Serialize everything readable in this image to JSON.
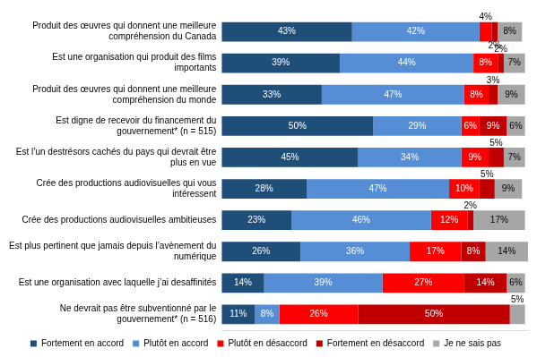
{
  "chart_data": {
    "type": "bar",
    "orientation": "horizontal",
    "stacked": true,
    "data_labels": true,
    "tick_labels": false,
    "grid": false,
    "legend": "bottom",
    "xlim": [
      0,
      101
    ],
    "categories": [
      "Produit des œuvres qui donnent une meilleure compréhension du Canada",
      "Est une organisation qui produit des films importants",
      "Produit des œuvres qui donnent une meilleure compréhension du monde",
      "Est digne de recevoir du financement du gouvernement* (n = 515)",
      "Est l’un destrésors cachés du pays qui devrait être plus en vue",
      "Crée des productions audiovisuelles qui vous intéressent",
      "Crée des productions audiovisuelles ambitieuses",
      "Est plus pertinent que jamais depuis l’avènement du numérique",
      "Est une organisation avec laquelle j’ai desaffinités",
      "Ne devrait pas être subventionné par le gouvernement* (n = 516)"
    ],
    "series": [
      {
        "name": "Fortement en accord",
        "color": "#1f4e79",
        "values": [
          43,
          39,
          33,
          50,
          45,
          28,
          23,
          26,
          14,
          11
        ],
        "value_labels": [
          "43%",
          "39%",
          "33%",
          "50%",
          "45%",
          "28%",
          "23%",
          "26%",
          "14%",
          "11%"
        ]
      },
      {
        "name": "Plutôt en accord",
        "color": "#558ed5",
        "values": [
          42,
          44,
          47,
          29,
          34,
          47,
          46,
          36,
          39,
          8
        ],
        "value_labels": [
          "42%",
          "44%",
          "47%",
          "29%",
          "34%",
          "47%",
          "46%",
          "36%",
          "39%",
          "8%"
        ]
      },
      {
        "name": "Plutôt en désaccord",
        "color": "#ff0000",
        "values": [
          4,
          8,
          8,
          6,
          9,
          10,
          12,
          17,
          27,
          26
        ],
        "value_labels": [
          "4%",
          "8%",
          "8%",
          "6%",
          "9%",
          "10%",
          "12%",
          "17%",
          "27%",
          "26%"
        ]
      },
      {
        "name": "Fortement en désaccord",
        "color": "#c00000",
        "values": [
          2,
          2,
          3,
          9,
          5,
          5,
          2,
          8,
          14,
          50
        ],
        "value_labels": [
          "2%",
          "2%",
          "3%",
          "9%",
          "5%",
          "5%",
          "2%",
          "8%",
          "14%",
          "50%"
        ]
      },
      {
        "name": "Je ne sais pas",
        "color": "#a6a6a6",
        "values": [
          8,
          7,
          9,
          6,
          7,
          9,
          17,
          14,
          6,
          5
        ],
        "value_labels": [
          "8%",
          "7%",
          "9%",
          "6%",
          "7%",
          "9%",
          "17%",
          "14%",
          "6%",
          "5%"
        ]
      }
    ]
  }
}
